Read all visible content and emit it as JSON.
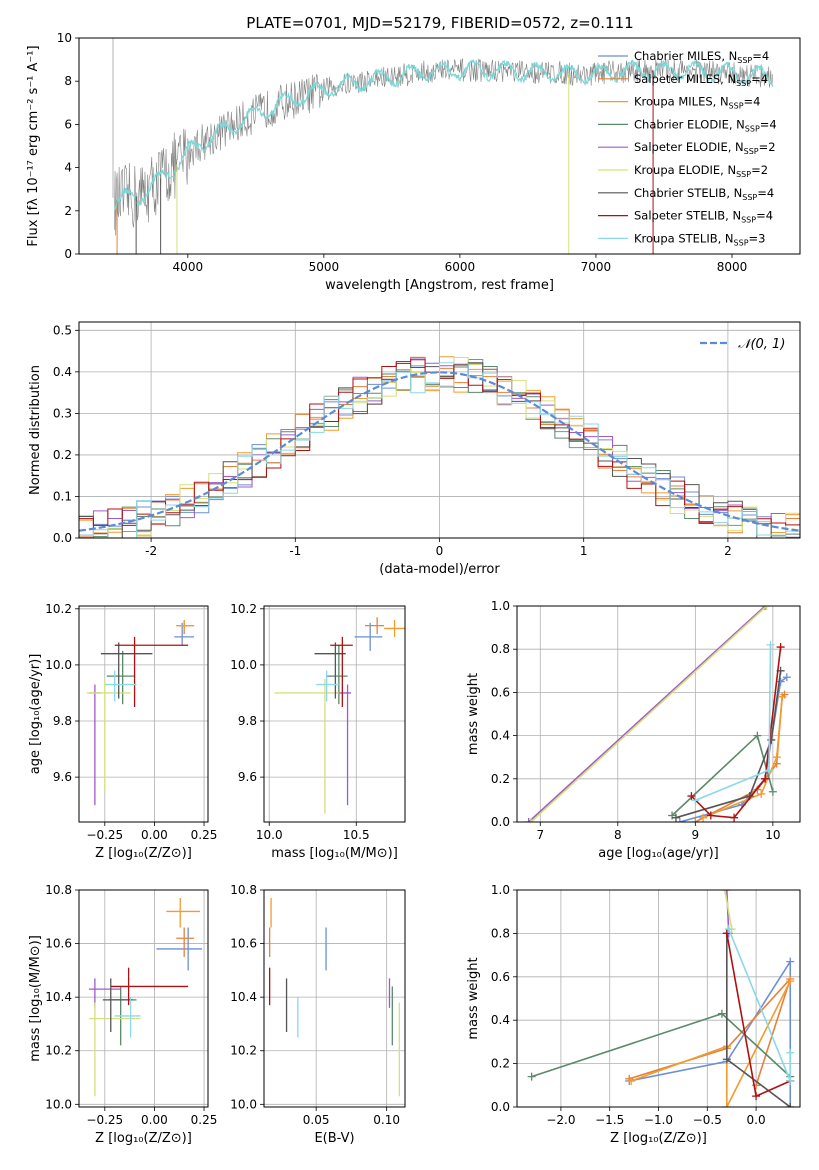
{
  "figure_title": "PLATE=0701, MJD=52179, FIBERID=0572, z=0.111",
  "series": [
    {
      "name": "Chabrier MILES",
      "nssp": "4",
      "color": "#6b8fd6"
    },
    {
      "name": "Salpeter MILES",
      "nssp": "4",
      "color": "#e8803a"
    },
    {
      "name": "Kroupa MILES",
      "nssp": "4",
      "color": "#f29b2e"
    },
    {
      "name": "Chabrier ELODIE",
      "nssp": "4",
      "color": "#5a8a6a"
    },
    {
      "name": "Salpeter ELODIE",
      "nssp": "2",
      "color": "#a05bc8"
    },
    {
      "name": "Kroupa ELODIE",
      "nssp": "2",
      "color": "#d6e07a"
    },
    {
      "name": "Chabrier STELIB",
      "nssp": "4",
      "color": "#555555"
    },
    {
      "name": "Salpeter STELIB",
      "nssp": "4",
      "color": "#b01010"
    },
    {
      "name": "Kroupa STELIB",
      "nssp": "3",
      "color": "#8ad8e8"
    }
  ],
  "chart_data": [
    {
      "id": "spectrum",
      "type": "line",
      "xlabel": "wavelength [Angstrom, rest frame]",
      "ylabel": "Flux [fλ 10⁻¹⁷ erg cm⁻² s⁻¹ A⁻¹]",
      "xlim": [
        3200,
        8500
      ],
      "ylim": [
        0,
        10
      ],
      "xticks": [
        4000,
        5000,
        6000,
        7000,
        8000
      ],
      "yticks": [
        0,
        2,
        4,
        6,
        8,
        10
      ],
      "grid": false,
      "legend_loc": "right",
      "data_color": "#808080",
      "model_color": "#7fd6d6",
      "continuum": [
        [
          3460,
          2.4
        ],
        [
          3550,
          2.6
        ],
        [
          3650,
          2.7
        ],
        [
          3750,
          3.2
        ],
        [
          3850,
          3.8
        ],
        [
          3950,
          4.3
        ],
        [
          4050,
          5.0
        ],
        [
          4200,
          5.5
        ],
        [
          4350,
          6.0
        ],
        [
          4500,
          6.5
        ],
        [
          4700,
          7.0
        ],
        [
          4900,
          7.4
        ],
        [
          5100,
          7.8
        ],
        [
          5300,
          8.0
        ],
        [
          5500,
          8.2
        ],
        [
          5700,
          8.4
        ],
        [
          5900,
          8.5
        ],
        [
          6100,
          8.5
        ],
        [
          6300,
          8.5
        ],
        [
          6500,
          8.4
        ],
        [
          6700,
          8.4
        ],
        [
          6900,
          8.3
        ],
        [
          7100,
          8.4
        ],
        [
          7300,
          8.5
        ],
        [
          7500,
          8.5
        ],
        [
          7700,
          8.5
        ],
        [
          7900,
          8.4
        ],
        [
          8100,
          8.3
        ],
        [
          8300,
          8.2
        ]
      ]
    },
    {
      "id": "residuals",
      "type": "bar",
      "xlabel": "(data-model)/error",
      "ylabel": "Normed distribution",
      "xlim": [
        -2.5,
        2.5
      ],
      "ylim": [
        0,
        0.52
      ],
      "xticks": [
        -2,
        -1,
        0,
        1,
        2
      ],
      "yticks": [
        0.0,
        0.1,
        0.2,
        0.3,
        0.4,
        0.5
      ],
      "grid": true,
      "legend": "𝒩(0, 1)",
      "legend_loc": "top-right",
      "gaussian_color": "#5b8bd8"
    },
    {
      "id": "age-vs-Z",
      "type": "scatter",
      "xlabel": "Z [log₁₀(Z/Z⊙)]",
      "ylabel": "age  [log₁₀(age/yr)]",
      "xlim": [
        -0.38,
        0.27
      ],
      "ylim": [
        9.44,
        10.21
      ],
      "xticks": [
        -0.25,
        0.0,
        0.25
      ],
      "xtick_labels": [
        "−0.25",
        "0.00",
        "0.25"
      ],
      "yticks": [
        9.6,
        9.8,
        10.0,
        10.2
      ],
      "grid": true,
      "points": [
        {
          "x": 0.14,
          "xl": 0.1,
          "xh": 0.2,
          "y": 10.1,
          "yl": 10.07,
          "yh": 10.15
        },
        {
          "x": 0.15,
          "xl": 0.11,
          "xh": 0.2,
          "y": 10.14,
          "yl": 10.11,
          "yh": 10.16
        },
        {
          "x": 0.15,
          "xl": 0.12,
          "xh": 0.2,
          "y": 10.14,
          "yl": 10.12,
          "yh": 10.16
        },
        {
          "x": -0.16,
          "xl": -0.24,
          "xh": -0.1,
          "y": 9.96,
          "yl": 9.86,
          "yh": 10.05
        },
        {
          "x": -0.3,
          "xl": -0.33,
          "xh": -0.27,
          "y": 9.9,
          "yl": 9.5,
          "yh": 9.93
        },
        {
          "x": -0.25,
          "xl": -0.34,
          "xh": -0.12,
          "y": 9.9,
          "yl": 9.55,
          "yh": 9.95
        },
        {
          "x": -0.18,
          "xl": -0.27,
          "xh": -0.01,
          "y": 10.04,
          "yl": 9.88,
          "yh": 10.08
        },
        {
          "x": -0.1,
          "xl": -0.2,
          "xh": 0.17,
          "y": 10.07,
          "yl": 9.85,
          "yh": 10.1
        },
        {
          "x": -0.2,
          "xl": -0.25,
          "xh": -0.09,
          "y": 9.93,
          "yl": 9.87,
          "yh": 9.98
        }
      ]
    },
    {
      "id": "age-vs-mass",
      "type": "scatter",
      "xlabel": "mass [log₁₀(M/M⊙)]",
      "ylabel": "",
      "xlim": [
        9.97,
        10.78
      ],
      "ylim": [
        9.44,
        10.21
      ],
      "xticks": [
        10.0,
        10.5
      ],
      "xtick_labels": [
        "10.0",
        "10.5"
      ],
      "yticks": [
        9.6,
        9.8,
        10.0,
        10.2
      ],
      "grid": true,
      "points": [
        {
          "x": 10.58,
          "xl": 10.49,
          "xh": 10.65,
          "y": 10.1,
          "yl": 10.05,
          "yh": 10.15
        },
        {
          "x": 10.62,
          "xl": 10.55,
          "xh": 10.66,
          "y": 10.14,
          "yl": 10.11,
          "yh": 10.17
        },
        {
          "x": 10.72,
          "xl": 10.66,
          "xh": 10.78,
          "y": 10.13,
          "yl": 10.1,
          "yh": 10.16
        },
        {
          "x": 10.4,
          "xl": 10.33,
          "xh": 10.45,
          "y": 9.96,
          "yl": 9.86,
          "yh": 10.07
        },
        {
          "x": 10.45,
          "xl": 10.38,
          "xh": 10.47,
          "y": 9.9,
          "yl": 9.5,
          "yh": 9.93
        },
        {
          "x": 10.32,
          "xl": 10.03,
          "xh": 10.4,
          "y": 9.9,
          "yl": 9.47,
          "yh": 9.95
        },
        {
          "x": 10.38,
          "xl": 10.26,
          "xh": 10.44,
          "y": 10.04,
          "yl": 9.88,
          "yh": 10.08
        },
        {
          "x": 10.42,
          "xl": 10.35,
          "xh": 10.48,
          "y": 10.07,
          "yl": 9.85,
          "yh": 10.1
        },
        {
          "x": 10.33,
          "xl": 10.27,
          "xh": 10.4,
          "y": 9.93,
          "yl": 9.87,
          "yh": 9.98
        }
      ]
    },
    {
      "id": "weight-vs-age",
      "type": "line",
      "xlabel": "age  [log₁₀(age/yr)]",
      "ylabel": "mass weight",
      "xlim": [
        6.7,
        10.35
      ],
      "ylim": [
        0,
        1
      ],
      "xticks": [
        7,
        8,
        9,
        10
      ],
      "yticks": [
        0.0,
        0.2,
        0.4,
        0.6,
        0.8,
        1.0
      ],
      "grid": true,
      "lines": [
        [
          [
            8.8,
            0.0
          ],
          [
            9.6,
            0.08
          ],
          [
            9.9,
            0.2
          ],
          [
            10.1,
            0.65
          ],
          [
            10.18,
            0.67
          ]
        ],
        [
          [
            9.0,
            0.0
          ],
          [
            9.8,
            0.15
          ],
          [
            10.05,
            0.27
          ],
          [
            10.12,
            0.58
          ],
          [
            10.15,
            0.59
          ]
        ],
        [
          [
            9.1,
            0.02
          ],
          [
            9.85,
            0.13
          ],
          [
            10.05,
            0.3
          ],
          [
            10.12,
            0.58
          ]
        ],
        [
          [
            8.7,
            0.03
          ],
          [
            9.8,
            0.4
          ],
          [
            10.0,
            0.14
          ]
        ],
        [
          [
            6.85,
            0.0
          ],
          [
            9.9,
            1.0
          ]
        ],
        [
          [
            6.88,
            0.0
          ],
          [
            9.92,
            1.0
          ]
        ],
        [
          [
            8.75,
            0.02
          ],
          [
            9.7,
            0.12
          ],
          [
            9.98,
            0.38
          ],
          [
            10.1,
            0.7
          ]
        ],
        [
          [
            8.95,
            0.12
          ],
          [
            9.2,
            0.03
          ],
          [
            9.5,
            0.02
          ],
          [
            9.9,
            0.2
          ],
          [
            10.1,
            0.81
          ]
        ],
        [
          [
            9.0,
            0.1
          ],
          [
            9.95,
            0.24
          ],
          [
            9.97,
            0.82
          ]
        ]
      ]
    },
    {
      "id": "mass-vs-Z",
      "type": "scatter",
      "xlabel": "Z [log₁₀(Z/Z⊙)]",
      "ylabel": "mass [log₁₀(M/M⊙)]",
      "xlim": [
        -0.38,
        0.27
      ],
      "ylim": [
        9.99,
        10.8
      ],
      "xticks": [
        -0.25,
        0.0,
        0.25
      ],
      "xtick_labels": [
        "−0.25",
        "0.00",
        "0.25"
      ],
      "yticks": [
        10.0,
        10.2,
        10.4,
        10.6,
        10.8
      ],
      "grid": true,
      "points": [
        {
          "x": 0.17,
          "xl": 0.01,
          "xh": 0.24,
          "y": 10.58,
          "yl": 10.5,
          "yh": 10.66
        },
        {
          "x": 0.15,
          "xl": 0.11,
          "xh": 0.2,
          "y": 10.62,
          "yl": 10.55,
          "yh": 10.66
        },
        {
          "x": 0.13,
          "xl": 0.06,
          "xh": 0.23,
          "y": 10.72,
          "yl": 10.66,
          "yh": 10.77
        },
        {
          "x": -0.17,
          "xl": -0.23,
          "xh": -0.09,
          "y": 10.39,
          "yl": 10.22,
          "yh": 10.44
        },
        {
          "x": -0.3,
          "xl": -0.33,
          "xh": -0.17,
          "y": 10.43,
          "yl": 10.36,
          "yh": 10.47
        },
        {
          "x": -0.3,
          "xl": -0.33,
          "xh": -0.07,
          "y": 10.32,
          "yl": 10.03,
          "yh": 10.38
        },
        {
          "x": -0.22,
          "xl": -0.26,
          "xh": -0.11,
          "y": 10.39,
          "yl": 10.27,
          "yh": 10.47
        },
        {
          "x": -0.13,
          "xl": -0.22,
          "xh": 0.17,
          "y": 10.44,
          "yl": 10.37,
          "yh": 10.51
        },
        {
          "x": -0.12,
          "xl": -0.2,
          "xh": -0.07,
          "y": 10.33,
          "yl": 10.25,
          "yh": 10.4
        }
      ]
    },
    {
      "id": "mass-vs-ebv",
      "type": "scatter",
      "xlabel": "E(B-V)",
      "ylabel": "",
      "xlim": [
        0.013,
        0.113
      ],
      "ylim": [
        9.99,
        10.8
      ],
      "xticks": [
        0.05,
        0.1
      ],
      "xtick_labels": [
        "0.05",
        "0.10"
      ],
      "yticks": [
        10.0,
        10.2,
        10.4,
        10.6,
        10.8
      ],
      "grid": true,
      "points": [
        {
          "x": 0.057,
          "y": 10.58,
          "yl": 10.5,
          "yh": 10.66
        },
        {
          "x": 0.017,
          "y": 10.62,
          "yl": 10.55,
          "yh": 10.66
        },
        {
          "x": 0.018,
          "y": 10.72,
          "yl": 10.66,
          "yh": 10.77
        },
        {
          "x": 0.104,
          "y": 10.39,
          "yl": 10.22,
          "yh": 10.44
        },
        {
          "x": 0.102,
          "y": 10.43,
          "yl": 10.36,
          "yh": 10.47
        },
        {
          "x": 0.109,
          "y": 10.32,
          "yl": 10.03,
          "yh": 10.38
        },
        {
          "x": 0.029,
          "y": 10.39,
          "yl": 10.27,
          "yh": 10.47
        },
        {
          "x": 0.017,
          "y": 10.44,
          "yl": 10.37,
          "yh": 10.51
        },
        {
          "x": 0.037,
          "y": 10.33,
          "yl": 10.25,
          "yh": 10.4
        }
      ]
    },
    {
      "id": "weight-vs-Z",
      "type": "line",
      "xlabel": "Z [log₁₀(Z/Z⊙)]",
      "ylabel": "mass weight",
      "xlim": [
        -2.45,
        0.45
      ],
      "ylim": [
        0,
        1
      ],
      "xticks": [
        -2.0,
        -1.5,
        -1.0,
        -0.5,
        0.0
      ],
      "xtick_labels": [
        "−2.0",
        "−1.5",
        "−1.0",
        "−0.5",
        "0.0"
      ],
      "yticks": [
        0.0,
        0.2,
        0.4,
        0.6,
        0.8,
        1.0
      ],
      "grid": true,
      "lines": [
        [
          [
            -1.3,
            0.12
          ],
          [
            -0.3,
            0.21
          ],
          [
            0.35,
            0.67
          ],
          [
            0.35,
            0.0
          ]
        ],
        [
          [
            -1.3,
            0.13
          ],
          [
            -0.3,
            0.27
          ],
          [
            0.35,
            0.59
          ],
          [
            0.0,
            0.1
          ]
        ],
        [
          [
            -1.28,
            0.12
          ],
          [
            -0.3,
            0.28
          ],
          [
            -0.3,
            0.0
          ],
          [
            0.35,
            0.58
          ]
        ],
        [
          [
            -2.3,
            0.14
          ],
          [
            -0.35,
            0.43
          ],
          [
            0.35,
            0.14
          ]
        ],
        [
          [
            -0.3,
            1.0
          ],
          [
            -0.28,
            0.8
          ]
        ],
        [
          [
            -0.32,
            1.0
          ],
          [
            -0.25,
            0.82
          ]
        ],
        [
          [
            -0.3,
            0.8
          ],
          [
            -0.3,
            0.22
          ],
          [
            0.35,
            0.0
          ]
        ],
        [
          [
            -0.3,
            0.8
          ],
          [
            0.0,
            0.05
          ],
          [
            0.35,
            0.12
          ]
        ],
        [
          [
            -0.28,
            0.82
          ],
          [
            0.35,
            0.12
          ],
          [
            0.35,
            0.25
          ]
        ]
      ]
    }
  ]
}
